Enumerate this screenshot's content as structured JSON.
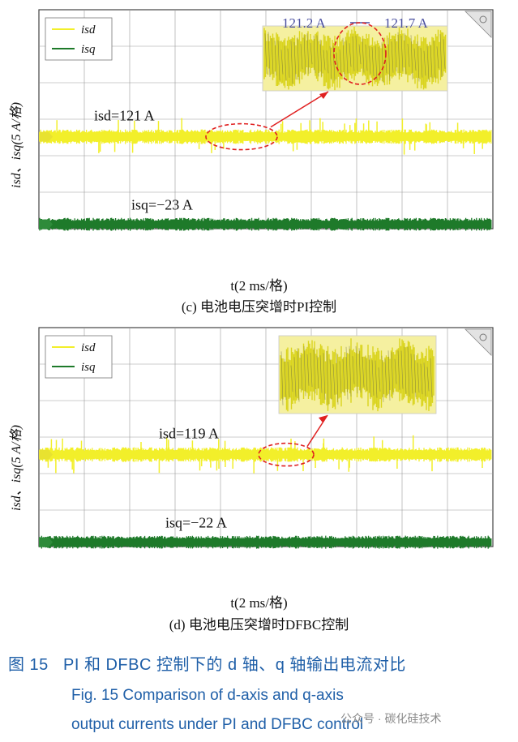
{
  "chart_data": [
    {
      "type": "line",
      "panel": "c",
      "caption": "(c) 电池电压突增时PI控制",
      "xlabel": "t(2 ms/格)",
      "ylabel": "isd、isq(5 A/格)",
      "grid": true,
      "legend_position": "top-left",
      "series": [
        {
          "name": "isd",
          "color": "#f2ef2a",
          "mean": 121,
          "label": "isd=121 A"
        },
        {
          "name": "isq",
          "color": "#1e7a2a",
          "mean": -23,
          "label": "isq=−23 A"
        }
      ],
      "zoom_annotations": [
        "121.2 A",
        "121.7 A"
      ]
    },
    {
      "type": "line",
      "panel": "d",
      "caption": "(d) 电池电压突增时DFBC控制",
      "xlabel": "t(2 ms/格)",
      "ylabel": "isd、isq(5 A/格)",
      "grid": true,
      "legend_position": "top-left",
      "series": [
        {
          "name": "isd",
          "color": "#f2ef2a",
          "mean": 119,
          "label": "isd=119 A"
        },
        {
          "name": "isq",
          "color": "#1e7a2a",
          "mean": -22,
          "label": "isq=−22 A"
        }
      ],
      "zoom_annotations": []
    }
  ],
  "figure": {
    "title_cn_prefix": "图 15",
    "title_cn": "PI 和 DFBC 控制下的 d 轴、q 轴输出电流对比",
    "title_en_line1": "Fig. 15    Comparison of d-axis and q-axis",
    "title_en_line2": "output currents under PI and DFBC control"
  },
  "legend": {
    "isd_sym": "i",
    "isd_sub": "sd",
    "isq_sym": "i",
    "isq_sub": "sq"
  },
  "ylabel_text": "isd、isq(5 A/格)",
  "watermark": "公众号 · 碳化硅技术"
}
